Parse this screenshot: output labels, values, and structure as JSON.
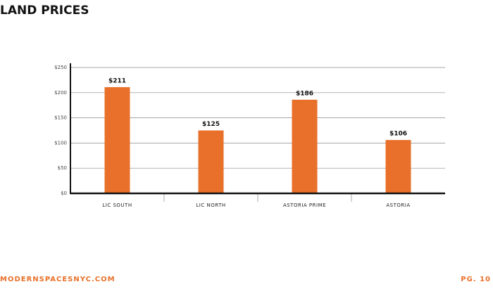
{
  "page_title": "LAND PRICES",
  "chart_data": {
    "type": "bar",
    "categories": [
      "LIC SOUTH",
      "LIC NORTH",
      "ASTORIA PRIME",
      "ASTORIA"
    ],
    "values": [
      211,
      125,
      186,
      106
    ],
    "value_labels": [
      "$211",
      "$125",
      "$186",
      "$106"
    ],
    "color": "#e8702a",
    "ylim": [
      0,
      250
    ],
    "yticks": [
      {
        "value": 0,
        "label": "$0"
      },
      {
        "value": 50,
        "label": "$50"
      },
      {
        "value": 100,
        "label": "$100"
      },
      {
        "value": 150,
        "label": "$150"
      },
      {
        "value": 200,
        "label": "$200"
      },
      {
        "value": 250,
        "label": "$250"
      }
    ],
    "grid": true
  },
  "footer": {
    "site": "MODERNSPACESNYC.COM",
    "page": "PG. 10"
  }
}
